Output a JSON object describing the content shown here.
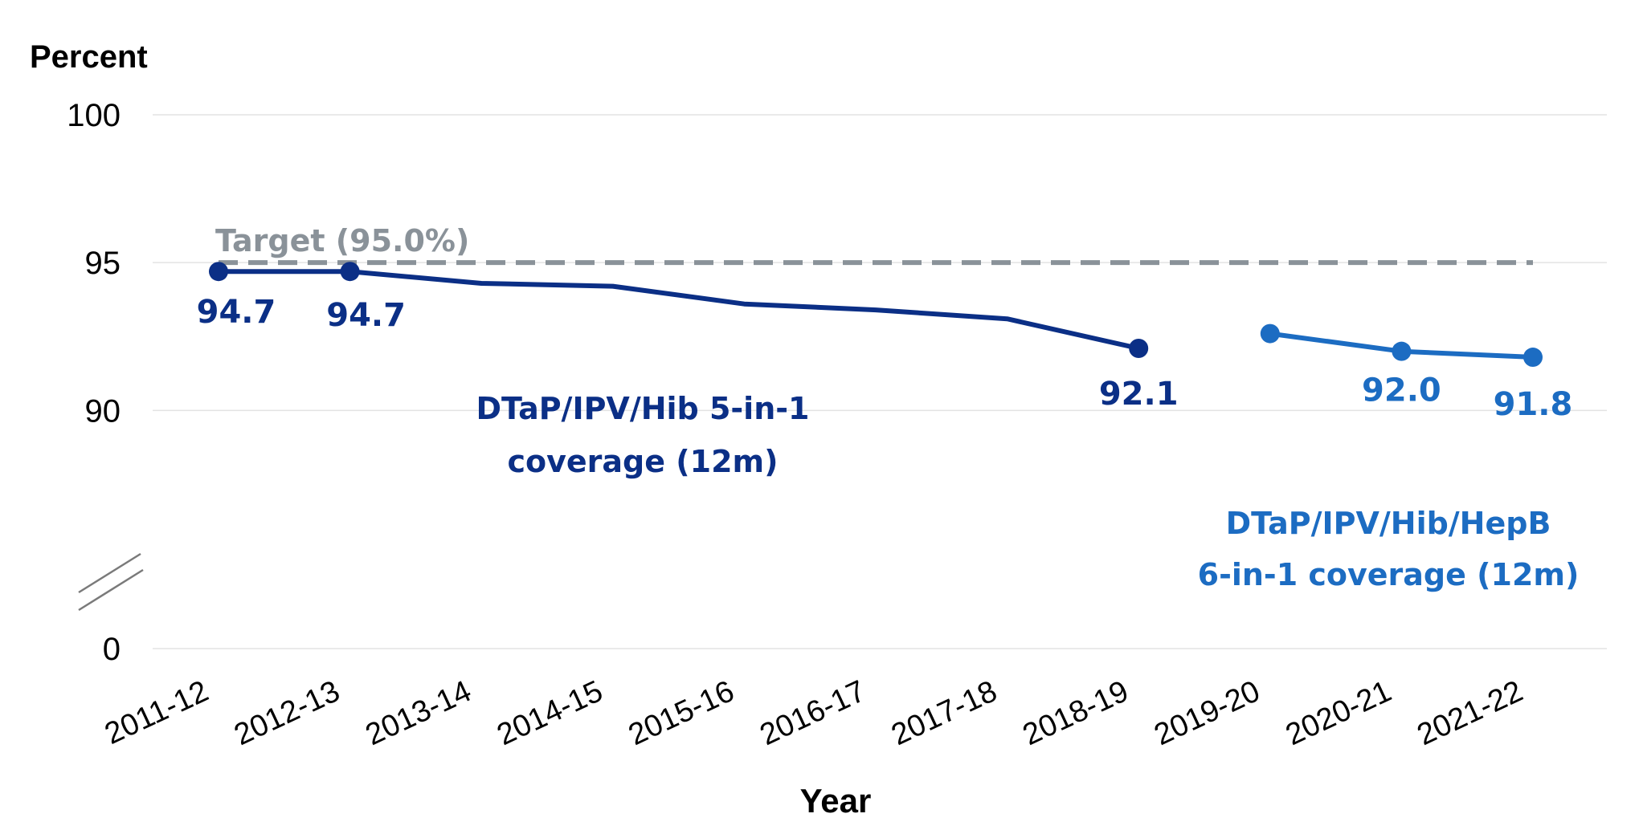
{
  "chart_data": {
    "type": "line",
    "ylabel": "Percent",
    "xlabel": "Year",
    "y_axis_break": true,
    "y_ticks": [
      "100",
      "95",
      "90",
      "0"
    ],
    "ylim": [
      88,
      100
    ],
    "categories": [
      "2011-12",
      "2012-13",
      "2013-14",
      "2014-15",
      "2015-16",
      "2016-17",
      "2017-18",
      "2018-19",
      "2019-20",
      "2020-21",
      "2021-22"
    ],
    "target": {
      "label": "Target (95.0%)",
      "value": 95.0,
      "color": "#8a9299"
    },
    "series": [
      {
        "name": "DTaP/IPV/Hib 5-in-1 coverage (12m)",
        "name_lines": [
          "DTaP/IPV/Hib 5-in-1",
          "coverage (12m)"
        ],
        "color": "#0b2f86",
        "x": [
          "2011-12",
          "2012-13",
          "2013-14",
          "2014-15",
          "2015-16",
          "2016-17",
          "2017-18",
          "2018-19"
        ],
        "values": [
          94.7,
          94.7,
          94.3,
          94.2,
          93.6,
          93.4,
          93.1,
          92.1
        ],
        "markers": [
          "2011-12",
          "2012-13",
          "2018-19"
        ],
        "data_labels": [
          {
            "x": "2011-12",
            "text": "94.7"
          },
          {
            "x": "2012-13",
            "text": "94.7"
          },
          {
            "x": "2018-19",
            "text": "92.1"
          }
        ]
      },
      {
        "name": "DTaP/IPV/Hib/HepB 6-in-1 coverage (12m)",
        "name_lines": [
          "DTaP/IPV/Hib/HepB",
          "6-in-1 coverage (12m)"
        ],
        "color": "#1c6cc2",
        "x": [
          "2019-20",
          "2020-21",
          "2021-22"
        ],
        "values": [
          92.6,
          92.0,
          91.8
        ],
        "markers": [
          "2019-20",
          "2020-21",
          "2021-22"
        ],
        "data_labels": [
          {
            "x": "2020-21",
            "text": "92.0"
          },
          {
            "x": "2021-22",
            "text": "91.8"
          }
        ]
      }
    ]
  }
}
